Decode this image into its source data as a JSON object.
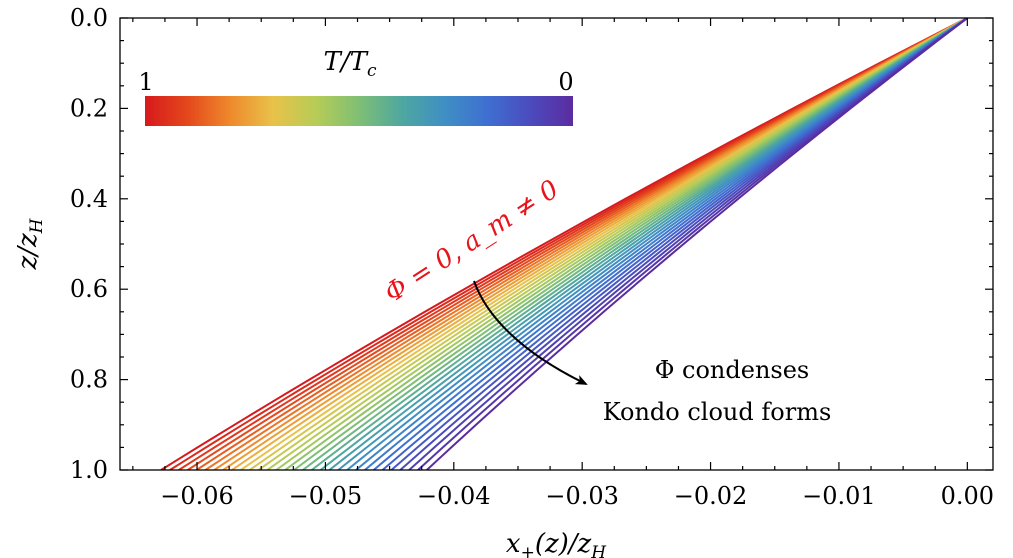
{
  "chart_data": {
    "type": "line",
    "xlabel": "x₊(z)/z_H",
    "ylabel": "z/z_H",
    "xlim": [
      -0.066,
      0.002
    ],
    "ylim": [
      1.0,
      0.0
    ],
    "y_inverted": true,
    "x_ticks": [
      -0.06,
      -0.05,
      -0.04,
      -0.03,
      -0.02,
      -0.01,
      0.0
    ],
    "x_tick_labels": [
      "−0.06",
      "−0.05",
      "−0.04",
      "−0.03",
      "−0.02",
      "−0.01",
      "0.00"
    ],
    "y_ticks": [
      0.0,
      0.2,
      0.4,
      0.6,
      0.8,
      1.0
    ],
    "y_tick_labels": [
      "0.0",
      "0.2",
      "0.4",
      "0.6",
      "0.8",
      "1.0"
    ],
    "series_description": "family of curves x+(z) colored by T/Tc from 1 (red) to 0 (purple)",
    "curves": {
      "count": 31,
      "t_over_tc_start": 1,
      "t_over_tc_end": 0,
      "x_at_z1_start": -0.0628,
      "x_at_z1_end": -0.0421,
      "origin": [
        0.0,
        0.0
      ]
    },
    "colorbar": {
      "title": "T/T_c",
      "left_label": "1",
      "right_label": "0",
      "colors": [
        "#d7191c",
        "#e4481c",
        "#ee8a2c",
        "#e8c24a",
        "#b6cc57",
        "#7fbf74",
        "#4fa7a0",
        "#3f8fc4",
        "#3f6fd1",
        "#4b4bbd",
        "#5b2ca0"
      ]
    },
    "annotations": {
      "red_label": "Φ = 0, a_m ≠ 0",
      "line1": "Φ condenses",
      "line2": "Kondo cloud forms"
    }
  }
}
